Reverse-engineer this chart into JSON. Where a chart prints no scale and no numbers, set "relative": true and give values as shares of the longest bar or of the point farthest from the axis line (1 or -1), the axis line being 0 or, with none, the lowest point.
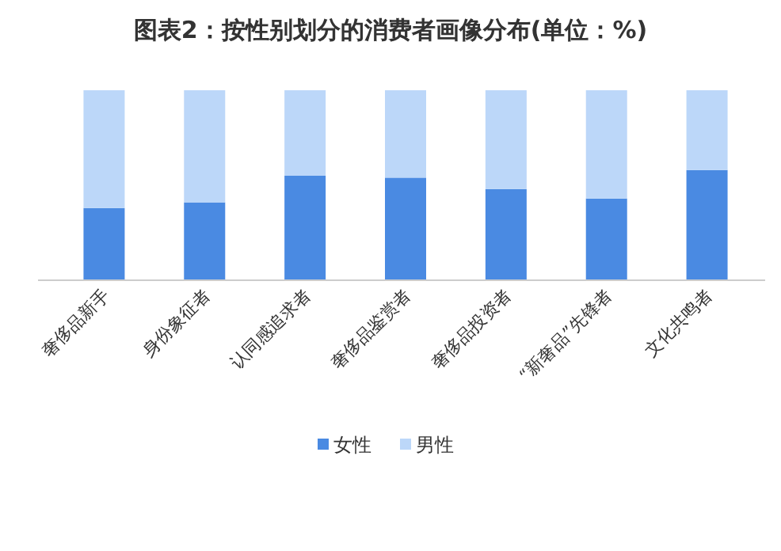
{
  "chart_data": {
    "type": "bar",
    "stacked": true,
    "relative": true,
    "title": "图表2：按性别划分的消费者画像分布(单位：%)",
    "categories": [
      "奢侈品新手",
      "身份象征者",
      "认同感追求者",
      "奢侈品鉴赏者",
      "奢侈品投资者",
      "“新奢品”先锋者",
      "文化共鸣者"
    ],
    "series": [
      {
        "name": "女性",
        "color": "#4a8ae2",
        "values": [
          0.38,
          0.41,
          0.55,
          0.54,
          0.48,
          0.43,
          0.58
        ]
      },
      {
        "name": "男性",
        "color": "#bcd7f9",
        "values": [
          0.62,
          0.59,
          0.45,
          0.46,
          0.52,
          0.57,
          0.42
        ]
      }
    ],
    "legend": "bottom"
  }
}
